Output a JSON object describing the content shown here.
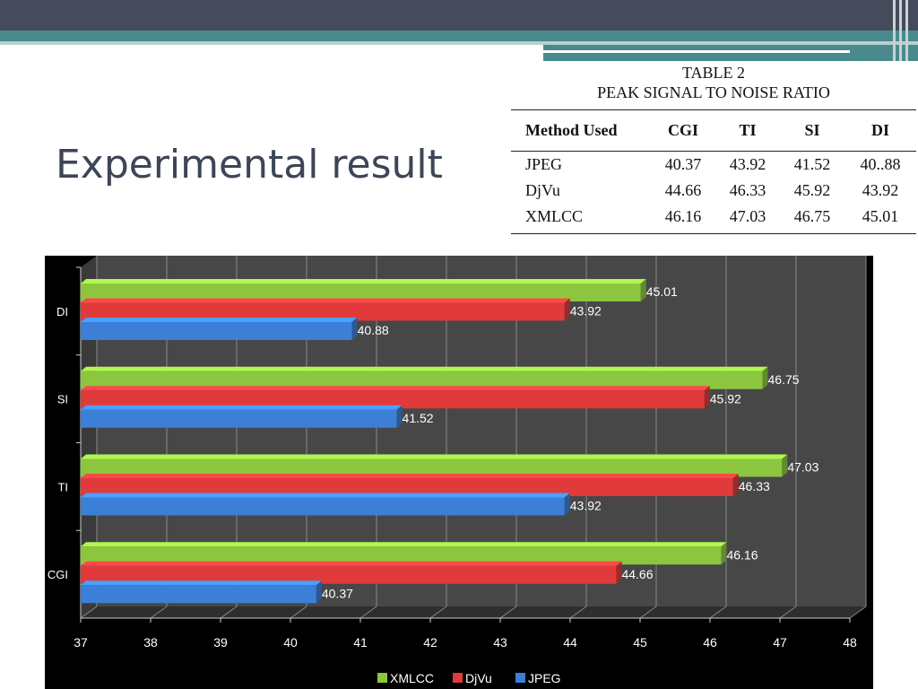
{
  "slide": {
    "title": "Experimental result"
  },
  "table": {
    "caption": "TABLE 2",
    "subtitle": "PEAK SIGNAL TO NOISE RATIO",
    "headers": [
      "Method Used",
      "CGI",
      "TI",
      "SI",
      "DI"
    ],
    "rows": [
      [
        "JPEG",
        "40.37",
        "43.92",
        "41.52",
        "40..88"
      ],
      [
        "DjVu",
        "44.66",
        "46.33",
        "45.92",
        "43.92"
      ],
      [
        "XMLCC",
        "46.16",
        "47.03",
        "46.75",
        "45.01"
      ]
    ]
  },
  "chart_data": {
    "type": "bar",
    "orientation": "horizontal",
    "categories": [
      "CGI",
      "TI",
      "SI",
      "DI"
    ],
    "series": [
      {
        "name": "XMLCC",
        "color": "#8cc63f",
        "values": [
          46.16,
          47.03,
          46.75,
          45.01
        ]
      },
      {
        "name": "DjVu",
        "color": "#e03a3a",
        "values": [
          44.66,
          46.33,
          45.92,
          43.92
        ]
      },
      {
        "name": "JPEG",
        "color": "#3c7fd6",
        "values": [
          40.37,
          43.92,
          41.52,
          40.88
        ]
      }
    ],
    "xlim": [
      37,
      48
    ],
    "xticks": [
      "37",
      "38",
      "39",
      "40",
      "41",
      "42",
      "43",
      "44",
      "45",
      "46",
      "47",
      "48"
    ],
    "grid": true,
    "legend_position": "bottom"
  }
}
